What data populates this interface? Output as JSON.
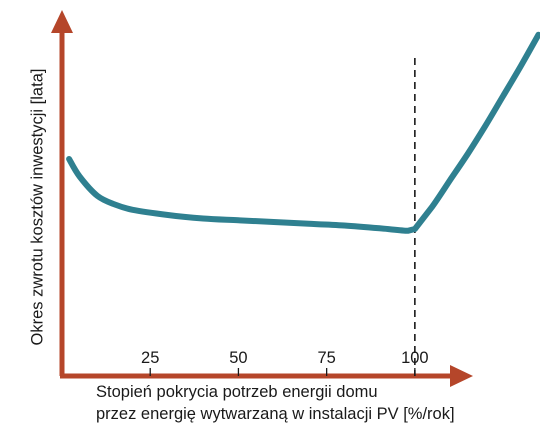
{
  "chart_data": {
    "type": "line",
    "title": "",
    "xlabel_lines": [
      "Stopień pokrycia potrzeb energii domu",
      "przez energię wytwarzaną w instalacji PV [%/rok]"
    ],
    "ylabel": "Okres zwrotu kosztów inwestycji [lata]",
    "x_ticks": [
      25,
      50,
      75,
      100
    ],
    "xlim": [
      0,
      140
    ],
    "ylim": [
      0,
      10
    ],
    "y_ticks_shown": false,
    "grid": false,
    "reference_line": {
      "x": 100,
      "style": "dashed"
    },
    "series": [
      {
        "x": [
          2,
          5,
          10,
          15,
          20,
          30,
          40,
          50,
          60,
          70,
          80,
          90,
          98,
          100,
          105,
          110,
          115,
          120,
          125,
          130,
          135
        ],
        "y": [
          6.2,
          5.7,
          5.15,
          4.9,
          4.75,
          4.6,
          4.5,
          4.45,
          4.4,
          4.35,
          4.3,
          4.22,
          4.15,
          4.2,
          4.85,
          5.6,
          6.35,
          7.15,
          8.0,
          8.85,
          9.75
        ]
      }
    ],
    "colors": {
      "line": "#2f8090",
      "axis": "#b5462a",
      "reference": "#1a1a1a"
    }
  }
}
